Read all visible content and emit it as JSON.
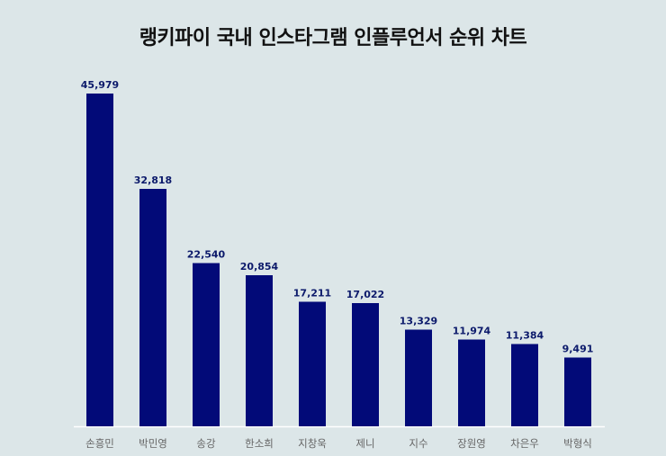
{
  "colors": {
    "background": "#dce6e8",
    "bar": "#020a78",
    "baseline": "#ffffff"
  },
  "chart_data": {
    "type": "bar",
    "title": "랭키파이 국내 인스타그램 인플루언서 순위 차트",
    "categories": [
      "손흥민",
      "박민영",
      "송강",
      "한소희",
      "지창욱",
      "제니",
      "지수",
      "장원영",
      "차은우",
      "박형식"
    ],
    "values": [
      45979,
      32818,
      22540,
      20854,
      17211,
      17022,
      13329,
      11974,
      11384,
      9491
    ],
    "value_labels": [
      "45,979",
      "32,818",
      "22,540",
      "20,854",
      "17,211",
      "17,022",
      "13,329",
      "11,974",
      "11,384",
      "9,491"
    ],
    "xlabel": "",
    "ylabel": "",
    "ylim": [
      0,
      45979
    ],
    "grid": false,
    "legend": "none"
  }
}
